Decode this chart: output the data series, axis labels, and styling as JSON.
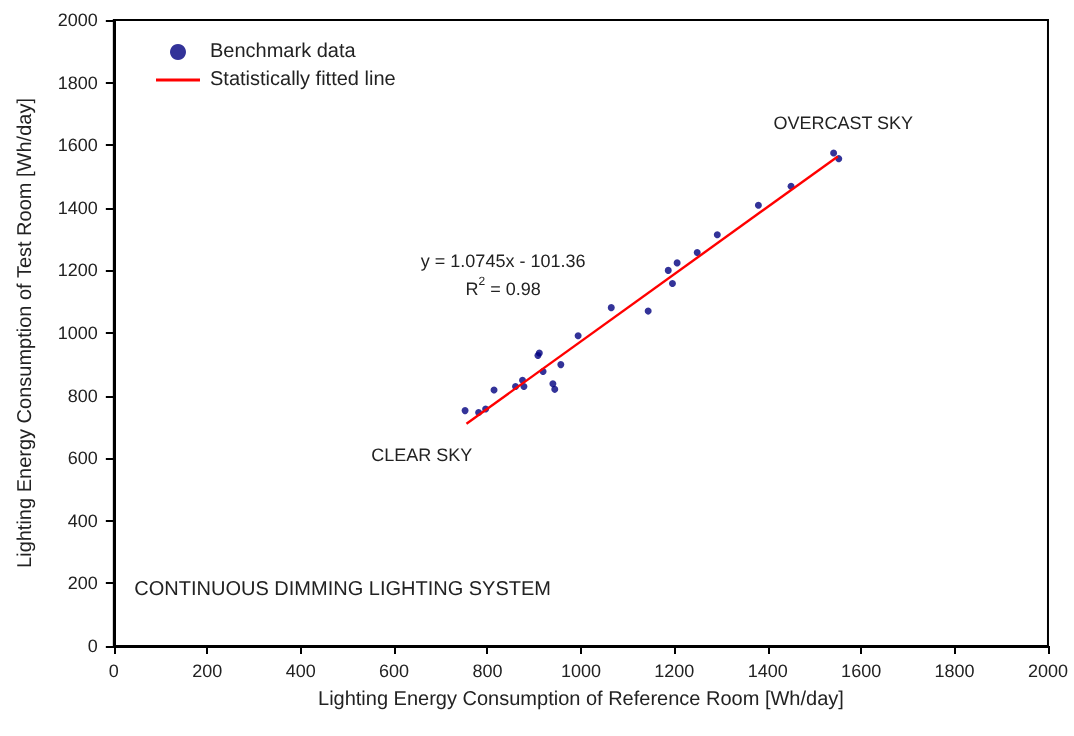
{
  "chart_data": {
    "type": "scatter",
    "xlabel": "Lighting Energy Consumption of Reference Room [Wh/day]",
    "ylabel": "Lighting Energy Consumption of Test Room [Wh/day]",
    "xlim": [
      0,
      2000
    ],
    "xticks": [
      0,
      200,
      400,
      600,
      800,
      1000,
      1200,
      1400,
      1600,
      1800,
      2000
    ],
    "ylim": [
      0,
      2000
    ],
    "yticks": [
      0,
      200,
      400,
      600,
      800,
      1000,
      1200,
      1400,
      1600,
      1800,
      2000
    ],
    "grid": false,
    "legend": "top left",
    "series": [
      {
        "name": "Benchmark data",
        "marker": "circle",
        "color": "#000080",
        "x": [
          752,
          781,
          796,
          814,
          860,
          875,
          878,
          908,
          911,
          919,
          940,
          944,
          957,
          994,
          1065,
          1144,
          1187,
          1196,
          1206,
          1249,
          1292,
          1380,
          1450,
          1541,
          1552
        ],
        "values": [
          752,
          746,
          757,
          818,
          829,
          849,
          829,
          928,
          936,
          877,
          838,
          820,
          899,
          991,
          1081,
          1070,
          1200,
          1158,
          1224,
          1257,
          1314,
          1408,
          1469,
          1575,
          1557
        ]
      },
      {
        "name": "Statistically fitted line",
        "type": "line",
        "marker": "none",
        "color": "#ff0000",
        "x": [
          755,
          1550
        ],
        "values": [
          710,
          1564
        ]
      }
    ],
    "annotations": [
      "y = 1.0745x - 101.36",
      "R$^{2}$ = 0.98",
      "CLEAR SKY",
      "OVERCAST SKY",
      "CONTINUOUS DIMMING LIGHTING SYSTEM"
    ]
  }
}
